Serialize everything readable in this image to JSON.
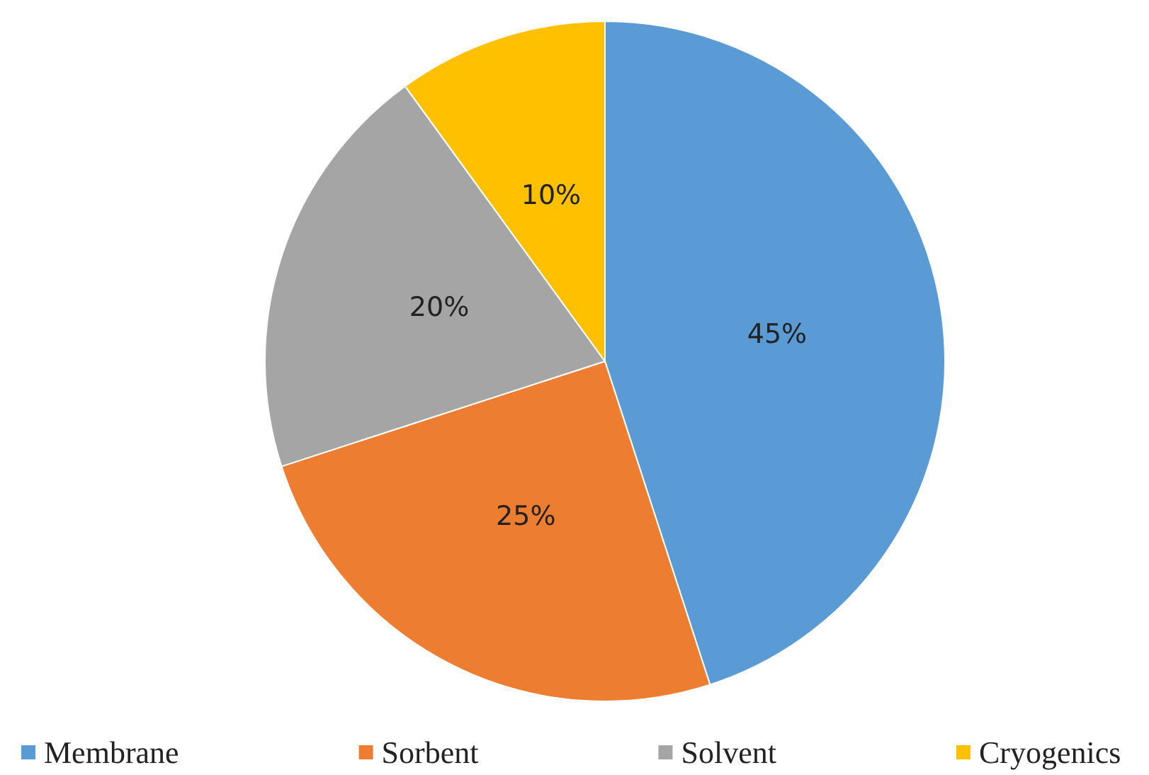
{
  "chart_data": {
    "type": "pie",
    "categories": [
      "Membrane",
      "Sorbent",
      "Solvent",
      "Cryogenics"
    ],
    "values": [
      45,
      25,
      20,
      10
    ],
    "colors": [
      "#5b9bd5",
      "#ed7d31",
      "#a5a5a5",
      "#ffc000"
    ],
    "value_labels": [
      "45%",
      "25%",
      "20%",
      "10%"
    ],
    "legend": "bottom"
  }
}
